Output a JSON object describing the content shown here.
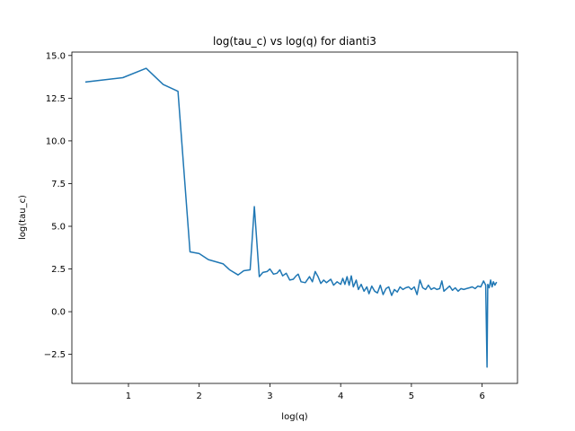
{
  "chart_data": {
    "type": "line",
    "title": "log(tau_c) vs log(q) for dianti3",
    "xlabel": "log(q)",
    "ylabel": "log(tau_c)",
    "xlim": [
      0.2,
      6.5
    ],
    "ylim": [
      -4.2,
      15.2
    ],
    "xticks": [
      1,
      2,
      3,
      4,
      5,
      6
    ],
    "xtick_labels": [
      "1",
      "2",
      "3",
      "4",
      "5",
      "6"
    ],
    "yticks": [
      -2.5,
      0.0,
      2.5,
      5.0,
      7.5,
      10.0,
      12.5,
      15.0
    ],
    "ytick_labels": [
      "−2.5",
      "0.0",
      "2.5",
      "5.0",
      "7.5",
      "10.0",
      "12.5",
      "15.0"
    ],
    "grid": false,
    "series": [
      {
        "color": "#1f77b4",
        "x": [
          0.4,
          0.92,
          1.25,
          1.49,
          1.7,
          1.87,
          2.0,
          2.13,
          2.34,
          2.43,
          2.55,
          2.63,
          2.72,
          2.78,
          2.85,
          2.9,
          2.96,
          3.0,
          3.05,
          3.1,
          3.14,
          3.18,
          3.23,
          3.28,
          3.33,
          3.37,
          3.4,
          3.44,
          3.5,
          3.56,
          3.6,
          3.64,
          3.68,
          3.72,
          3.76,
          3.8,
          3.83,
          3.86,
          3.9,
          3.95,
          4.0,
          4.03,
          4.06,
          4.09,
          4.12,
          4.15,
          4.18,
          4.22,
          4.25,
          4.29,
          4.33,
          4.37,
          4.4,
          4.44,
          4.48,
          4.52,
          4.56,
          4.6,
          4.64,
          4.68,
          4.72,
          4.76,
          4.8,
          4.84,
          4.88,
          4.92,
          4.96,
          5.0,
          5.04,
          5.08,
          5.12,
          5.16,
          5.2,
          5.24,
          5.28,
          5.32,
          5.36,
          5.4,
          5.43,
          5.46,
          5.5,
          5.54,
          5.58,
          5.62,
          5.66,
          5.7,
          5.74,
          5.78,
          5.82,
          5.86,
          5.9,
          5.94,
          5.98,
          6.02,
          6.05,
          6.07,
          6.08,
          6.1,
          6.12,
          6.14,
          6.16,
          6.18,
          6.2
        ],
        "y": [
          13.45,
          13.7,
          14.25,
          13.3,
          12.9,
          3.5,
          3.4,
          3.05,
          2.8,
          2.45,
          2.15,
          2.4,
          2.45,
          6.15,
          2.05,
          2.3,
          2.35,
          2.5,
          2.2,
          2.25,
          2.45,
          2.1,
          2.25,
          1.85,
          1.9,
          2.1,
          2.2,
          1.75,
          1.7,
          2.05,
          1.75,
          2.35,
          2.05,
          1.65,
          1.85,
          1.7,
          1.8,
          1.9,
          1.55,
          1.75,
          1.6,
          1.95,
          1.6,
          2.05,
          1.55,
          2.1,
          1.45,
          1.85,
          1.3,
          1.6,
          1.2,
          1.45,
          1.05,
          1.5,
          1.2,
          1.1,
          1.55,
          1.0,
          1.35,
          1.45,
          0.95,
          1.3,
          1.15,
          1.45,
          1.3,
          1.4,
          1.45,
          1.3,
          1.45,
          1.0,
          1.85,
          1.4,
          1.3,
          1.55,
          1.3,
          1.4,
          1.3,
          1.35,
          1.8,
          1.2,
          1.35,
          1.5,
          1.25,
          1.4,
          1.2,
          1.35,
          1.3,
          1.35,
          1.4,
          1.45,
          1.35,
          1.5,
          1.45,
          1.8,
          1.55,
          -3.25,
          1.6,
          1.4,
          1.85,
          1.45,
          1.75,
          1.55,
          1.7
        ]
      }
    ]
  }
}
